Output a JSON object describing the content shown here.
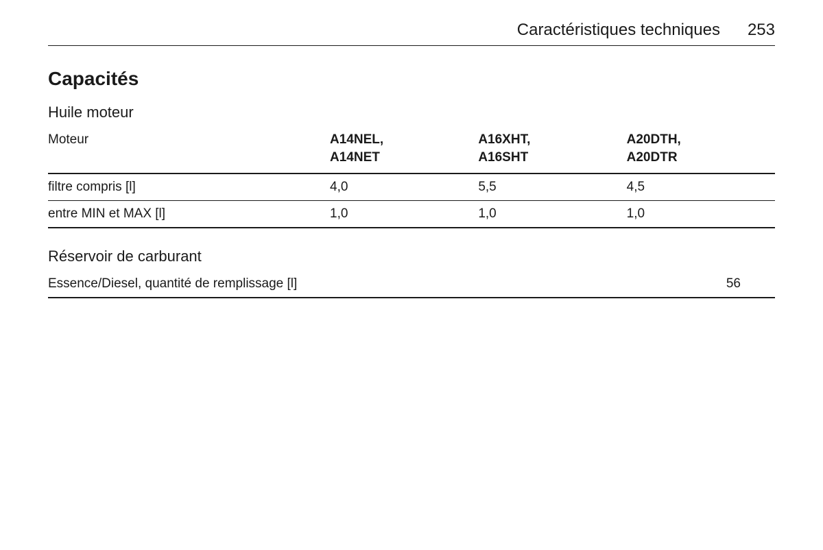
{
  "header": {
    "title": "Caractéristiques techniques",
    "page_number": "253"
  },
  "section": {
    "title": "Capacités",
    "oil": {
      "title": "Huile moteur",
      "row_header": "Moteur",
      "engines": [
        {
          "line1": "A14NEL,",
          "line2": "A14NET"
        },
        {
          "line1": "A16XHT,",
          "line2": "A16SHT"
        },
        {
          "line1": "A20DTH,",
          "line2": "A20DTR"
        }
      ],
      "rows": [
        {
          "label": "filtre compris [l]",
          "values": [
            "4,0",
            "5,5",
            "4,5"
          ]
        },
        {
          "label": "entre MIN et MAX [l]",
          "values": [
            "1,0",
            "1,0",
            "1,0"
          ]
        }
      ]
    },
    "fuel": {
      "title": "Réservoir de carburant",
      "label": "Essence/Diesel, quantité de remplissage [l]",
      "value": "56"
    }
  },
  "style": {
    "text_color": "#1a1a1a",
    "background_color": "#ffffff",
    "border_color": "#1a1a1a"
  }
}
